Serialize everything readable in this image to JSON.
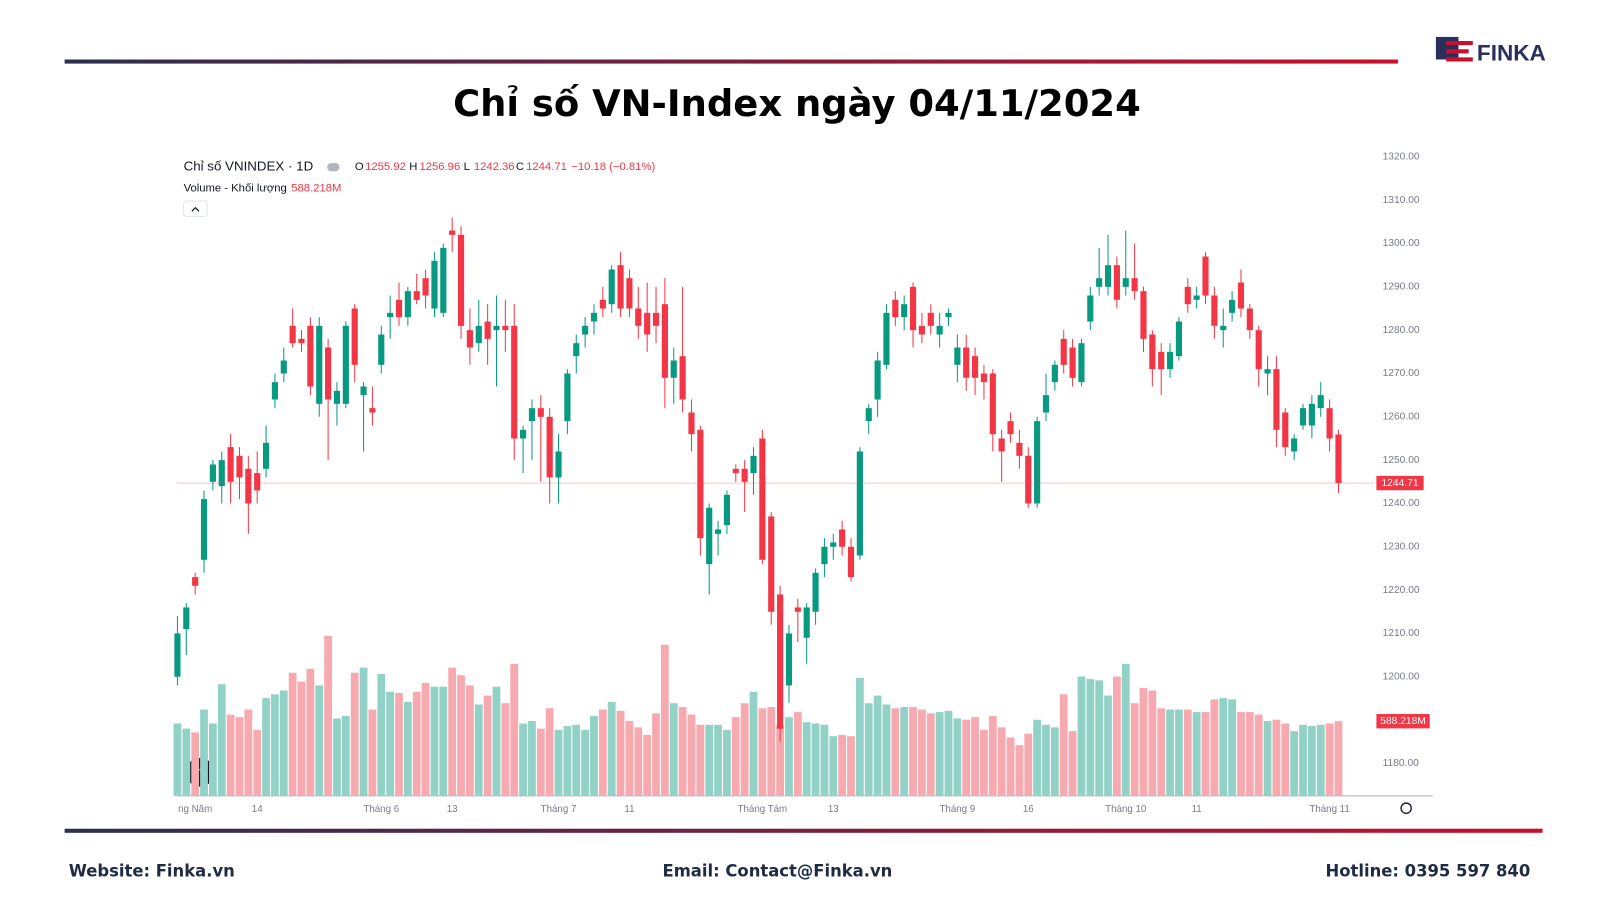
{
  "header": {
    "title": "Chỉ số VN-Index ngày 04/11/2024",
    "logo": "FINKA"
  },
  "footer": {
    "website": "Website: Finka.vn",
    "email": "Email: Contact@Finka.vn",
    "hotline": "Hotline: 0395 597 840"
  },
  "chart_data": {
    "type": "candlestick",
    "title": "Chỉ số VNINDEX · 1D",
    "volume_title": "Volume - Khối lượng",
    "ohlc_letters": [
      "O",
      "H",
      "L",
      "C"
    ],
    "change_label": "−10.18 (−0.81%)",
    "last_volume_label": "588.218M",
    "up_color": "#089981",
    "down_color": "#f23645",
    "volume_up_color": "#92d2c6",
    "volume_down_color": "#f7a9b0",
    "grid": false,
    "ylim": [
      1172.5,
      1320.7
    ],
    "yticks": [
      {
        "value": 1180,
        "label": "1180.00"
      },
      {
        "value": 1190,
        "label": "1190.00"
      },
      {
        "value": 1200,
        "label": "1200.00"
      },
      {
        "value": 1210,
        "label": "1210.00"
      },
      {
        "value": 1220,
        "label": "1220.00"
      },
      {
        "value": 1230,
        "label": "1230.00"
      },
      {
        "value": 1240,
        "label": "1240.00"
      },
      {
        "value": 1250,
        "label": "1250.00"
      },
      {
        "value": 1260,
        "label": "1260.00"
      },
      {
        "value": 1270,
        "label": "1270.00"
      },
      {
        "value": 1280,
        "label": "1280.00"
      },
      {
        "value": 1290,
        "label": "1290.00"
      },
      {
        "value": 1300,
        "label": "1300.00"
      },
      {
        "value": 1310,
        "label": "1310.00"
      },
      {
        "value": 1320,
        "label": "1320.00"
      }
    ],
    "categories": [
      null,
      null,
      "ng Năm",
      null,
      null,
      null,
      null,
      null,
      null,
      "14",
      null,
      null,
      null,
      null,
      null,
      null,
      null,
      null,
      null,
      null,
      null,
      null,
      null,
      "Tháng 6",
      null,
      null,
      null,
      null,
      null,
      null,
      null,
      "13",
      null,
      null,
      null,
      null,
      null,
      null,
      null,
      null,
      null,
      null,
      null,
      "Tháng 7",
      null,
      null,
      null,
      null,
      null,
      null,
      null,
      "11",
      null,
      null,
      null,
      null,
      null,
      null,
      null,
      null,
      null,
      null,
      null,
      null,
      null,
      null,
      "Tháng Tám",
      null,
      null,
      null,
      null,
      null,
      null,
      null,
      "13",
      null,
      null,
      null,
      null,
      null,
      null,
      null,
      null,
      null,
      null,
      null,
      null,
      null,
      "Tháng 9",
      null,
      null,
      null,
      null,
      null,
      null,
      null,
      "16",
      null,
      null,
      null,
      null,
      null,
      null,
      null,
      null,
      null,
      null,
      "Tháng 10",
      null,
      null,
      null,
      null,
      null,
      null,
      null,
      "11",
      null,
      null,
      null,
      null,
      null,
      null,
      null,
      null,
      null,
      null,
      null,
      null,
      null,
      null,
      "Tháng 11",
      null
    ],
    "open": [
      1200,
      1211,
      1223,
      1227,
      1245,
      1244,
      1253,
      1251,
      1248,
      1247,
      1248,
      1264,
      1270,
      1281,
      1278,
      1281,
      1263,
      1276,
      1263,
      1263,
      1285,
      1265,
      1262,
      1272,
      1283,
      1287,
      1283,
      1289,
      1292,
      1285,
      1284,
      1303,
      1302,
      1280,
      1277,
      1282,
      1280,
      1281,
      1281,
      1255,
      1259,
      1262,
      1260,
      1246,
      1259,
      1274,
      1279,
      1282,
      1287,
      1286,
      1295,
      1292,
      1285,
      1284,
      1284,
      1286,
      1269,
      1274,
      1261,
      1257,
      1226,
      1233,
      1235,
      1248,
      1248,
      1247,
      1255,
      1237,
      1219,
      1198,
      1216,
      1209,
      1215,
      1226,
      1230,
      1234,
      1230,
      1228,
      1259,
      1264,
      1272,
      1287,
      1283,
      1290,
      1281,
      1284,
      1279,
      1283,
      1272,
      1276,
      1274,
      1270,
      1270,
      1255,
      1259,
      1254,
      1251,
      1240,
      1261,
      1268,
      1278,
      1276,
      1268,
      1282,
      1290,
      1290,
      1295,
      1290,
      1292,
      1289,
      1279,
      1275,
      1271,
      1274,
      1290,
      1287,
      1297,
      1288,
      1280,
      1284,
      1291,
      1285,
      1280,
      1270,
      1271,
      1261,
      1252,
      1258,
      1258,
      1262,
      1262,
      1255.92
    ],
    "high": [
      1214,
      1217,
      1224,
      1243,
      1250,
      1252,
      1256,
      1253,
      1251,
      1252,
      1258,
      1270,
      1276,
      1285,
      1280,
      1283,
      1283,
      1278,
      1268,
      1282,
      1286,
      1268,
      1267,
      1281,
      1288,
      1291,
      1290,
      1293,
      1294,
      1298,
      1300,
      1306,
      1304,
      1285,
      1287,
      1286,
      1288,
      1287,
      1286,
      1258,
      1264,
      1265,
      1262,
      1256,
      1271,
      1279,
      1283,
      1286,
      1290,
      1295,
      1298,
      1294,
      1290,
      1291,
      1290,
      1292,
      1276,
      1290,
      1264,
      1258,
      1240,
      1236,
      1243,
      1249,
      1250,
      1253,
      1257,
      1238,
      1221,
      1212,
      1218,
      1217,
      1225,
      1232,
      1233,
      1236,
      1232,
      1253,
      1263,
      1275,
      1286,
      1289,
      1288,
      1291,
      1284,
      1286,
      1284,
      1285,
      1279,
      1279,
      1276,
      1272,
      1271,
      1257,
      1261,
      1257,
      1253,
      1260,
      1270,
      1273,
      1280,
      1278,
      1278,
      1290,
      1299,
      1302,
      1297,
      1303,
      1300,
      1290,
      1280,
      1277,
      1277,
      1283,
      1292,
      1290,
      1298,
      1290,
      1285,
      1289,
      1294,
      1286,
      1281,
      1274,
      1274,
      1262,
      1256,
      1263,
      1265,
      1268,
      1264,
      1256.96
    ],
    "low": [
      1198,
      1205,
      1219,
      1224,
      1243,
      1240,
      1240,
      1241,
      1233,
      1240,
      1246,
      1262,
      1268,
      1276,
      1275,
      1265,
      1260,
      1250,
      1258,
      1262,
      1268,
      1252,
      1258,
      1270,
      1278,
      1281,
      1281,
      1286,
      1285,
      1283,
      1283,
      1298,
      1278,
      1272,
      1275,
      1272,
      1267,
      1275,
      1250,
      1247,
      1250,
      1245,
      1240,
      1240,
      1256,
      1270,
      1276,
      1279,
      1283,
      1284,
      1283,
      1283,
      1278,
      1275,
      1277,
      1262,
      1263,
      1261,
      1252,
      1228,
      1219,
      1228,
      1233,
      1245,
      1238,
      1242,
      1226,
      1212,
      1185,
      1194,
      1208,
      1203,
      1212,
      1223,
      1227,
      1228,
      1222,
      1227,
      1256,
      1260,
      1271,
      1281,
      1280,
      1276,
      1277,
      1279,
      1276,
      1281,
      1268,
      1266,
      1265,
      1264,
      1252,
      1245,
      1254,
      1248,
      1239,
      1239,
      1259,
      1266,
      1270,
      1267,
      1267,
      1280,
      1288,
      1288,
      1285,
      1288,
      1287,
      1275,
      1267,
      1265,
      1269,
      1273,
      1284,
      1285,
      1286,
      1278,
      1276,
      1282,
      1283,
      1278,
      1267,
      1265,
      1253,
      1251,
      1250,
      1257,
      1255,
      1260,
      1252,
      1242.36
    ],
    "close": [
      1210,
      1216,
      1221,
      1241,
      1249,
      1250,
      1245,
      1246,
      1240,
      1243,
      1254,
      1268,
      1273,
      1277,
      1277,
      1267,
      1281,
      1264,
      1266,
      1281,
      1272,
      1267,
      1261,
      1279,
      1284,
      1283,
      1289,
      1287,
      1288,
      1296,
      1299,
      1302,
      1281,
      1276,
      1281,
      1278,
      1281,
      1280,
      1255,
      1257,
      1262,
      1260,
      1246,
      1252,
      1270,
      1277,
      1281,
      1284,
      1285,
      1294,
      1285,
      1285,
      1281,
      1279,
      1281,
      1269,
      1273,
      1264,
      1256,
      1232,
      1239,
      1234,
      1242,
      1247,
      1245,
      1251,
      1227,
      1215,
      1188,
      1210,
      1215,
      1216,
      1224,
      1230,
      1231,
      1230,
      1223,
      1252,
      1262,
      1273,
      1284,
      1283,
      1286,
      1280,
      1279,
      1281,
      1281,
      1284,
      1276,
      1269,
      1269,
      1268,
      1256,
      1252,
      1256,
      1251,
      1240,
      1259,
      1265,
      1272,
      1272,
      1269,
      1277,
      1288,
      1292,
      1295,
      1287,
      1292,
      1289,
      1278,
      1271,
      1271,
      1275,
      1282,
      1286,
      1288,
      1288,
      1281,
      1281,
      1287,
      1285,
      1280,
      1271,
      1271,
      1257,
      1253,
      1255,
      1262,
      1263,
      1265,
      1255,
      1244.71
    ],
    "volume": [
      570,
      530,
      500,
      680,
      570,
      880,
      640,
      620,
      680,
      520,
      770,
      800,
      830,
      970,
      900,
      1000,
      870,
      1260,
      610,
      630,
      970,
      1010,
      680,
      960,
      820,
      810,
      740,
      820,
      890,
      860,
      860,
      1010,
      950,
      870,
      720,
      790,
      860,
      730,
      1040,
      570,
      590,
      530,
      690,
      520,
      550,
      560,
      520,
      630,
      680,
      740,
      670,
      590,
      540,
      480,
      650,
      1190,
      730,
      700,
      640,
      560,
      560,
      560,
      520,
      620,
      730,
      820,
      690,
      700,
      560,
      620,
      660,
      580,
      570,
      560,
      470,
      480,
      470,
      930,
      730,
      790,
      720,
      690,
      700,
      700,
      680,
      650,
      660,
      670,
      610,
      600,
      620,
      520,
      630,
      540,
      460,
      400,
      490,
      600,
      560,
      540,
      800,
      510,
      940,
      920,
      910,
      790,
      940,
      1040,
      730,
      850,
      830,
      690,
      680,
      680,
      680,
      660,
      660,
      760,
      770,
      760,
      660,
      660,
      640,
      590,
      600,
      570,
      510,
      560,
      550,
      560,
      570,
      588.218
    ]
  }
}
